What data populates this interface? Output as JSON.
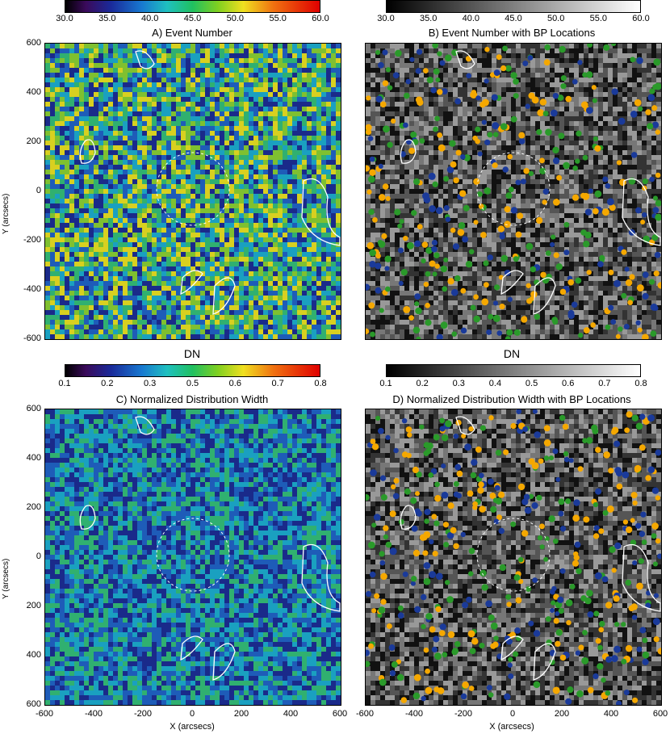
{
  "panels": [
    {
      "title": "A) Event Number",
      "style": "color"
    },
    {
      "title": "B) Event Number with BP Locations",
      "style": "gray"
    },
    {
      "title": "C) Normalized Distribution Width",
      "style": "color"
    },
    {
      "title": "D) Normalized Distribution Width with BP Locations",
      "style": "gray"
    }
  ],
  "colorbar_top": {
    "ticks": [
      "30.0",
      "35.0",
      "40.0",
      "45.0",
      "50.0",
      "55.0",
      "60.0"
    ]
  },
  "colorbar_bottom": {
    "unit": "DN",
    "ticks_left": [
      "0.1",
      "0.2",
      "0.3",
      "0.5",
      "0.6",
      "0.7",
      "0.8"
    ],
    "ticks_right": [
      "0.1",
      "0.2",
      "0.3",
      "0.4",
      "0.5",
      "0.6",
      "0.7",
      "0.8"
    ]
  },
  "axes": {
    "ylabel": "Y (arcsecs)",
    "xlabel": "X (arcsecs)",
    "yticks_top": [
      "600",
      "400",
      "200",
      "0",
      "-200",
      "-400",
      "-600"
    ],
    "yticks_bottom": [
      "600",
      "400",
      "200",
      "0",
      "200",
      "400",
      "600"
    ],
    "xticks": [
      "-600",
      "-400",
      "-200",
      "0",
      "200",
      "400",
      "600"
    ]
  },
  "bp_colors": [
    "#f5a800",
    "#1a3a9a",
    "#2a9a2a"
  ],
  "palette": {
    "color_map": [
      "#1a2a8a",
      "#1e5cb8",
      "#1aa0c0",
      "#30b070",
      "#7fc030",
      "#d8d020"
    ],
    "gray_map": [
      "#111111",
      "#333333",
      "#555555",
      "#777777",
      "#999999"
    ]
  }
}
